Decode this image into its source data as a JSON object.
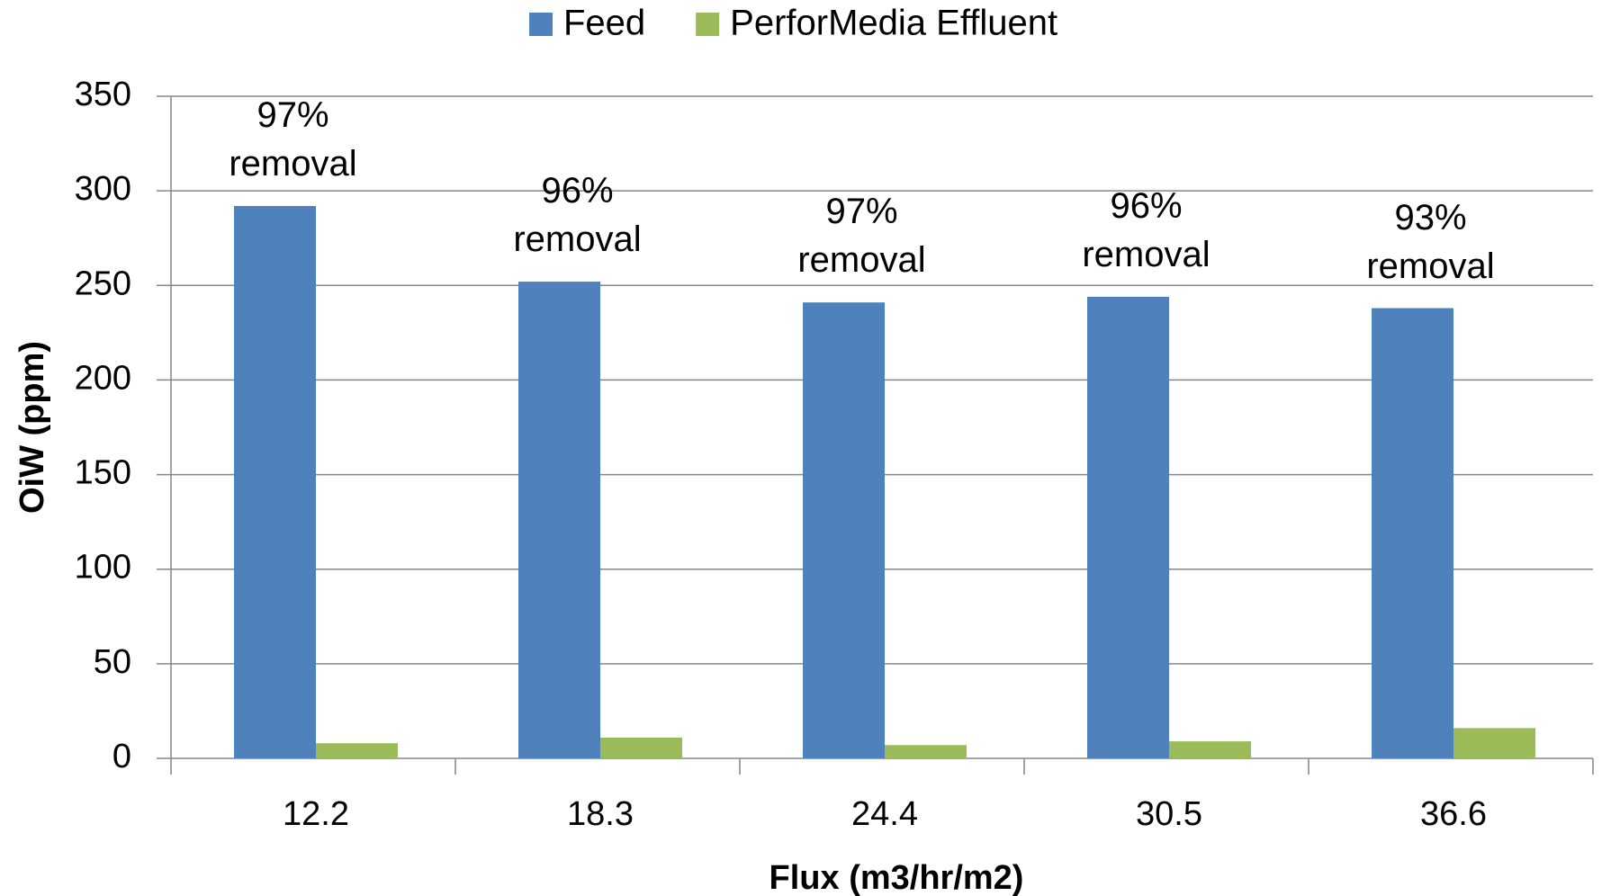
{
  "chart_data": {
    "type": "bar",
    "x_label": "Flux (m3/hr/m2)",
    "y_label": "OiW (ppm)",
    "categories": [
      "12.2",
      "18.3",
      "24.4",
      "30.5",
      "36.6"
    ],
    "series": [
      {
        "name": "Feed",
        "color": "#4f81bd",
        "values": [
          292,
          252,
          241,
          244,
          238
        ]
      },
      {
        "name": "PerforMedia Effluent",
        "color": "#9bbb59",
        "values": [
          8,
          11,
          7,
          9,
          16
        ]
      }
    ],
    "annotations": [
      "97% removal",
      "96% removal",
      "97% removal",
      "96% removal",
      "93% removal"
    ],
    "ylim": [
      0,
      350
    ],
    "yticks": [
      0,
      50,
      100,
      150,
      200,
      250,
      300,
      350
    ],
    "grid": true,
    "legend": "top"
  }
}
